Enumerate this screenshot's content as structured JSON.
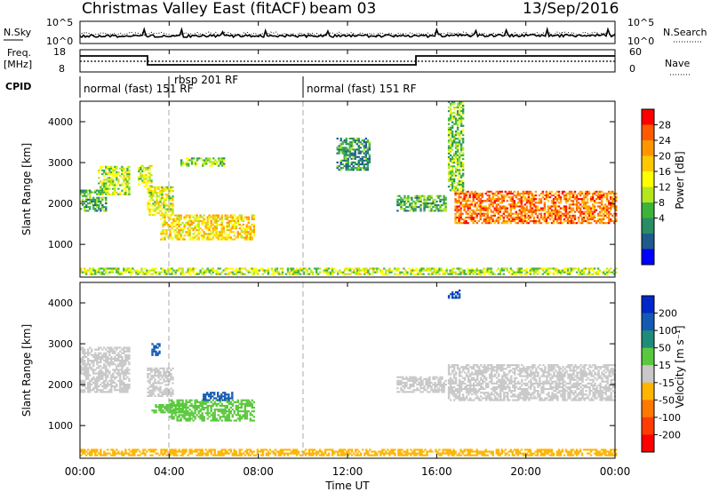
{
  "header": {
    "station": "Christmas Valley East (fitACF)",
    "beam": "beam 03",
    "date": "13/Sep/2016"
  },
  "noise_panel": {
    "left_label": "N.Sky",
    "right_label": "N.Search",
    "left_ticks": [
      "10^5",
      "10^0"
    ],
    "right_ticks": [
      "10^5",
      "10^0"
    ]
  },
  "freq_panel": {
    "left_label_line1": "Freq.",
    "left_label_line2": "[MHz]",
    "right_label": "Nave",
    "left_ticks": [
      "18",
      "8"
    ],
    "right_ticks": [
      "60",
      "0"
    ]
  },
  "cpid": {
    "label": "CPID",
    "segments": [
      {
        "start_hour": 0,
        "label": "normal (fast) 151 RF"
      },
      {
        "start_hour": 4,
        "label": "rbsp 201 RF"
      },
      {
        "start_hour": 10,
        "label": "normal (fast) 151 RF"
      }
    ]
  },
  "x_axis": {
    "label": "Time UT",
    "tick_labels": [
      "00:00",
      "04:00",
      "08:00",
      "12:00",
      "16:00",
      "20:00",
      "00:00"
    ],
    "range_hours": [
      0,
      24
    ]
  },
  "power_colorbar": {
    "label": "Power [dB]",
    "ticks": [
      "28",
      "24",
      "20",
      "16",
      "12",
      "8",
      "4"
    ],
    "colors": [
      "#ff0000",
      "#ff5a00",
      "#ff9600",
      "#ffc800",
      "#ffff00",
      "#b4e61e",
      "#3cb43c",
      "#288c64",
      "#1e5a8c",
      "#0000ff"
    ]
  },
  "velocity_colorbar": {
    "label": "Velocity [m s⁻¹]",
    "ticks": [
      "200",
      "100",
      "50",
      "15",
      "-15",
      "-50",
      "-100",
      "-200"
    ],
    "colors": [
      "#0028c8",
      "#145ab4",
      "#1e8c78",
      "#5ac83c",
      "#c8c8c8",
      "#ffb400",
      "#ff7800",
      "#ff3c00",
      "#ff0000"
    ]
  },
  "chart_data": [
    {
      "type": "heatmap",
      "title": "Power",
      "ylabel": "Slant Range [km]",
      "xlabel": "",
      "x_range_hours": [
        0,
        24
      ],
      "ylim": [
        200,
        4500
      ],
      "y_ticks": [
        1000,
        2000,
        3000,
        4000
      ],
      "value_label": "Power [dB]",
      "echo_regions": [
        {
          "t0": 0.0,
          "t1": 1.2,
          "r0": 1800,
          "r1": 2300,
          "value": 10
        },
        {
          "t0": 0.8,
          "t1": 2.2,
          "r0": 2200,
          "r1": 2900,
          "value": 14
        },
        {
          "t0": 2.6,
          "t1": 3.2,
          "r0": 2400,
          "r1": 2900,
          "value": 16
        },
        {
          "t0": 3.0,
          "t1": 4.2,
          "r0": 1700,
          "r1": 2400,
          "value": 16
        },
        {
          "t0": 3.6,
          "t1": 7.8,
          "r0": 1100,
          "r1": 1700,
          "value": 18
        },
        {
          "t0": 4.5,
          "t1": 6.5,
          "r0": 2900,
          "r1": 3100,
          "value": 12
        },
        {
          "t0": 11.5,
          "t1": 13.0,
          "r0": 2800,
          "r1": 3600,
          "value": 8
        },
        {
          "t0": 14.2,
          "t1": 16.4,
          "r0": 1800,
          "r1": 2200,
          "value": 10
        },
        {
          "t0": 16.5,
          "t1": 17.2,
          "r0": 2300,
          "r1": 4500,
          "value": 12
        },
        {
          "t0": 16.8,
          "t1": 24.0,
          "r0": 1500,
          "r1": 2300,
          "value": 24
        },
        {
          "t0": 0.0,
          "t1": 24.0,
          "r0": 250,
          "r1": 400,
          "value": 14
        }
      ]
    },
    {
      "type": "heatmap",
      "title": "Velocity",
      "ylabel": "Slant Range [km]",
      "xlabel": "Time UT",
      "x_range_hours": [
        0,
        24
      ],
      "ylim": [
        200,
        4500
      ],
      "y_ticks": [
        1000,
        2000,
        3000,
        4000
      ],
      "value_label": "Velocity [m s⁻¹]",
      "echo_regions": [
        {
          "t0": 0.0,
          "t1": 2.2,
          "r0": 1800,
          "r1": 2900,
          "value": 0
        },
        {
          "t0": 3.0,
          "t1": 4.2,
          "r0": 1700,
          "r1": 2400,
          "value": 0
        },
        {
          "t0": 3.2,
          "t1": 4.8,
          "r0": 1300,
          "r1": 1500,
          "value": 30
        },
        {
          "t0": 4.0,
          "t1": 7.8,
          "r0": 1100,
          "r1": 1600,
          "value": 30
        },
        {
          "t0": 5.5,
          "t1": 6.8,
          "r0": 1600,
          "r1": 1800,
          "value": 150
        },
        {
          "t0": 3.2,
          "t1": 3.6,
          "r0": 2700,
          "r1": 3000,
          "value": 150
        },
        {
          "t0": 14.2,
          "t1": 16.4,
          "r0": 1800,
          "r1": 2200,
          "value": 0
        },
        {
          "t0": 16.5,
          "t1": 24.0,
          "r0": 1600,
          "r1": 2500,
          "value": 0
        },
        {
          "t0": 16.5,
          "t1": 17.0,
          "r0": 4100,
          "r1": 4300,
          "value": 200
        },
        {
          "t0": 0.0,
          "t1": 24.0,
          "r0": 250,
          "r1": 400,
          "value": -30
        }
      ]
    }
  ]
}
